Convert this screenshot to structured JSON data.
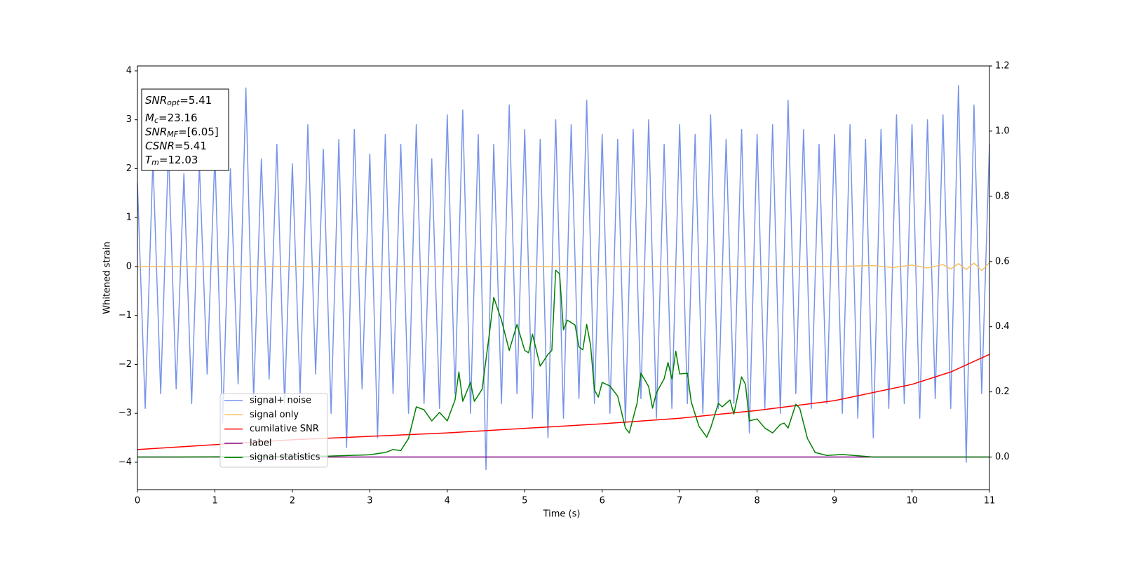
{
  "chart_data": {
    "type": "line",
    "xlabel": "Time (s)",
    "ylabel": "Whitened strain",
    "xlim": [
      0,
      11
    ],
    "ylim": [
      -4.56,
      4.1
    ],
    "y2lim": [
      -0.1,
      1.2
    ],
    "xticks": [
      0,
      1,
      2,
      3,
      4,
      5,
      6,
      7,
      8,
      9,
      10,
      11
    ],
    "yticks": [
      {
        "value": -4,
        "label": "−4"
      },
      {
        "value": -3,
        "label": "−3"
      },
      {
        "value": -2,
        "label": "−2"
      },
      {
        "value": -1,
        "label": "−1"
      },
      0,
      1,
      2,
      3,
      4
    ],
    "y2ticks": [
      {
        "value": 0,
        "label": "0.0"
      },
      {
        "value": 0.2,
        "label": "0.2"
      },
      {
        "value": 0.4,
        "label": "0.4"
      },
      {
        "value": 0.6,
        "label": "0.6"
      },
      {
        "value": 0.8,
        "label": "0.8"
      },
      {
        "value": 1,
        "label": "1.0"
      },
      {
        "value": 1.2,
        "label": "1.2"
      }
    ],
    "legend": "lower left",
    "annotation": [
      {
        "main": "SNR",
        "sub": "opt",
        "rest": "=5.41"
      },
      {
        "main": "M",
        "sub": "c",
        "rest": "=23.16"
      },
      {
        "main": "SNR",
        "sub": "MF",
        "rest": "=[6.05]"
      },
      {
        "main": "CSNR",
        "sub": "",
        "rest": "=5.41"
      },
      {
        "main": "T",
        "sub": "m",
        "rest": "=12.03"
      }
    ],
    "series": [
      {
        "name": "signal+ noise",
        "color": "#7894e8",
        "axis": "y",
        "x": [
          0,
          0.1,
          0.2,
          0.3,
          0.4,
          0.5,
          0.6,
          0.7,
          0.8,
          0.9,
          1,
          1.1,
          1.2,
          1.3,
          1.4,
          1.5,
          1.6,
          1.7,
          1.8,
          1.9,
          2,
          2.1,
          2.2,
          2.3,
          2.4,
          2.5,
          2.6,
          2.7,
          2.8,
          2.9,
          3,
          3.1,
          3.2,
          3.3,
          3.4,
          3.5,
          3.6,
          3.7,
          3.8,
          3.9,
          4,
          4.1,
          4.2,
          4.3,
          4.4,
          4.5,
          4.6,
          4.7,
          4.8,
          4.9,
          5,
          5.1,
          5.2,
          5.3,
          5.4,
          5.5,
          5.6,
          5.7,
          5.8,
          5.9,
          6,
          6.1,
          6.2,
          6.3,
          6.4,
          6.5,
          6.6,
          6.7,
          6.8,
          6.9,
          7,
          7.1,
          7.2,
          7.3,
          7.4,
          7.5,
          7.6,
          7.7,
          7.8,
          7.9,
          8,
          8.1,
          8.2,
          8.3,
          8.4,
          8.5,
          8.6,
          8.7,
          8.8,
          8.9,
          9,
          9.1,
          9.2,
          9.3,
          9.4,
          9.5,
          9.6,
          9.7,
          9.8,
          9.9,
          10,
          10.1,
          10.2,
          10.3,
          10.4,
          10.5,
          10.6,
          10.7,
          10.8,
          10.9,
          11
        ],
        "values": [
          1.7,
          -2.9,
          2.2,
          -2.6,
          2.4,
          -2.5,
          1.9,
          -2.8,
          2.1,
          -2.2,
          2.3,
          -3.2,
          2.0,
          -2.4,
          3.65,
          -2.7,
          2.2,
          -2.3,
          2.5,
          -2.8,
          2.1,
          -2.6,
          2.9,
          -2.2,
          2.4,
          -3.0,
          2.6,
          -3.7,
          2.8,
          -2.5,
          2.3,
          -3.5,
          2.7,
          -2.6,
          2.5,
          -3.0,
          2.9,
          -2.8,
          2.2,
          -2.9,
          3.1,
          -2.6,
          3.2,
          -3.0,
          2.7,
          -4.15,
          2.5,
          -2.8,
          3.3,
          -2.6,
          2.8,
          -3.1,
          2.6,
          -3.5,
          3.0,
          -3.1,
          2.9,
          -2.7,
          3.4,
          -2.8,
          2.7,
          -3.0,
          2.6,
          -3.2,
          2.8,
          -2.7,
          3.0,
          -3.1,
          2.5,
          -2.9,
          2.9,
          -2.8,
          2.7,
          -3.0,
          3.1,
          -2.9,
          2.6,
          -2.8,
          2.8,
          -3.4,
          2.7,
          -2.9,
          2.9,
          -3.0,
          3.4,
          -2.6,
          2.8,
          -2.9,
          2.5,
          -2.8,
          2.7,
          -3.0,
          2.9,
          -3.1,
          2.6,
          -3.5,
          2.8,
          -2.9,
          3.1,
          -2.8,
          2.9,
          -3.1,
          3.0,
          -2.7,
          3.1,
          -2.9,
          3.7,
          -4.0,
          3.3,
          -2.6,
          2.5
        ]
      },
      {
        "name": "signal only",
        "color": "#f5bf5f",
        "axis": "y",
        "x": [
          0,
          9,
          9.5,
          9.75,
          10,
          10.2,
          10.4,
          10.5,
          10.6,
          10.7,
          10.8,
          10.9,
          11
        ],
        "values": [
          0,
          0,
          0.02,
          -0.02,
          0.03,
          -0.03,
          0.04,
          -0.05,
          0.06,
          -0.06,
          0.07,
          -0.08,
          0.08
        ]
      },
      {
        "name": "cumilative SNR",
        "color": "#ff0000",
        "axis": "y2",
        "x": [
          0,
          2,
          4,
          6,
          7,
          8,
          9,
          10,
          10.5,
          11
        ],
        "values": [
          0.023,
          0.053,
          0.074,
          0.102,
          0.119,
          0.143,
          0.173,
          0.223,
          0.261,
          0.315
        ]
      },
      {
        "name": "label",
        "color": "#800080",
        "axis": "y2",
        "x": [
          0,
          11
        ],
        "values": [
          0,
          0
        ]
      },
      {
        "name": "signal statistics",
        "color": "#008000",
        "axis": "y2",
        "x": [
          0,
          0.5,
          2.5,
          3,
          3.2,
          3.3,
          3.4,
          3.5,
          3.6,
          3.7,
          3.8,
          3.9,
          4,
          4.1,
          4.15,
          4.2,
          4.3,
          4.35,
          4.45,
          4.55,
          4.6,
          4.7,
          4.8,
          4.9,
          5,
          5.05,
          5.1,
          5.2,
          5.3,
          5.35,
          5.4,
          5.45,
          5.5,
          5.55,
          5.65,
          5.7,
          5.75,
          5.8,
          5.85,
          5.9,
          5.95,
          6,
          6.1,
          6.2,
          6.3,
          6.35,
          6.45,
          6.5,
          6.6,
          6.65,
          6.7,
          6.8,
          6.85,
          6.9,
          6.95,
          7,
          7.1,
          7.15,
          7.25,
          7.35,
          7.4,
          7.5,
          7.55,
          7.65,
          7.7,
          7.8,
          7.85,
          7.9,
          8,
          8.1,
          8.2,
          8.3,
          8.35,
          8.4,
          8.5,
          8.55,
          8.65,
          8.75,
          8.9,
          9.1,
          9.5,
          11
        ],
        "values": [
          0,
          0,
          0.003,
          0.007,
          0.014,
          0.023,
          0.02,
          0.057,
          0.154,
          0.145,
          0.111,
          0.137,
          0.111,
          0.175,
          0.261,
          0.171,
          0.229,
          0.171,
          0.208,
          0.39,
          0.49,
          0.42,
          0.327,
          0.407,
          0.327,
          0.32,
          0.377,
          0.279,
          0.315,
          0.327,
          0.573,
          0.562,
          0.39,
          0.42,
          0.405,
          0.338,
          0.329,
          0.407,
          0.343,
          0.206,
          0.184,
          0.229,
          0.218,
          0.187,
          0.089,
          0.074,
          0.165,
          0.257,
          0.216,
          0.15,
          0.197,
          0.24,
          0.29,
          0.24,
          0.325,
          0.255,
          0.257,
          0.169,
          0.094,
          0.061,
          0.089,
          0.165,
          0.154,
          0.175,
          0.132,
          0.246,
          0.223,
          0.111,
          0.117,
          0.089,
          0.074,
          0.1,
          0.104,
          0.089,
          0.162,
          0.15,
          0.057,
          0.014,
          0.005,
          0.008,
          0,
          0
        ]
      }
    ]
  }
}
